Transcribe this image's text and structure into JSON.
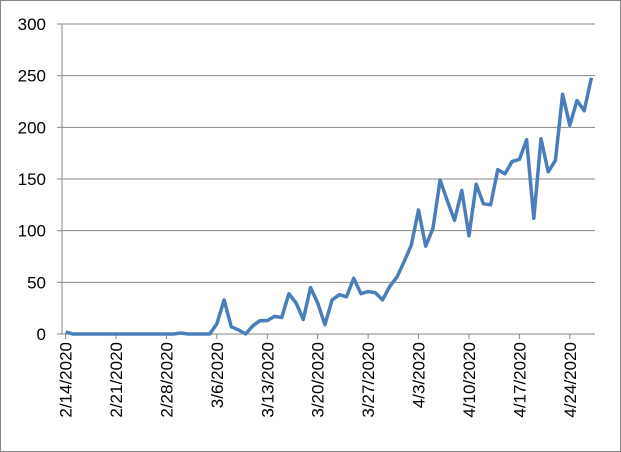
{
  "chart_data": {
    "type": "line",
    "categories": [
      "2/14/2020",
      null,
      null,
      null,
      null,
      null,
      null,
      "2/21/2020",
      null,
      null,
      null,
      null,
      null,
      null,
      "2/28/2020",
      null,
      null,
      null,
      null,
      null,
      null,
      "3/6/2020",
      null,
      null,
      null,
      null,
      null,
      null,
      "3/13/2020",
      null,
      null,
      null,
      null,
      null,
      null,
      "3/20/2020",
      null,
      null,
      null,
      null,
      null,
      null,
      "3/27/2020",
      null,
      null,
      null,
      null,
      null,
      null,
      "4/3/2020",
      null,
      null,
      null,
      null,
      null,
      null,
      "4/10/2020",
      null,
      null,
      null,
      null,
      null,
      null,
      "4/17/2020",
      null,
      null,
      null,
      null,
      null,
      null,
      "4/24/2020",
      null,
      null,
      null
    ],
    "values": [
      2,
      0,
      0,
      0,
      0,
      0,
      0,
      0,
      0,
      0,
      0,
      0,
      0,
      0,
      0,
      0,
      1,
      0,
      0,
      0,
      0,
      10,
      33,
      7,
      4,
      0,
      8,
      13,
      13,
      17,
      16,
      39,
      30,
      14,
      45,
      30,
      9,
      33,
      38,
      36,
      54,
      39,
      41,
      40,
      33,
      46,
      55,
      70,
      86,
      120,
      85,
      102,
      149,
      129,
      110,
      139,
      95,
      145,
      126,
      125,
      159,
      155,
      167,
      169,
      188,
      112,
      189,
      157,
      168,
      232,
      202,
      226,
      216,
      248
    ],
    "color": "#4a7ebb",
    "ylim": [
      0,
      300
    ],
    "yticks": [
      0,
      50,
      100,
      150,
      200,
      250,
      300
    ],
    "grid": true
  }
}
